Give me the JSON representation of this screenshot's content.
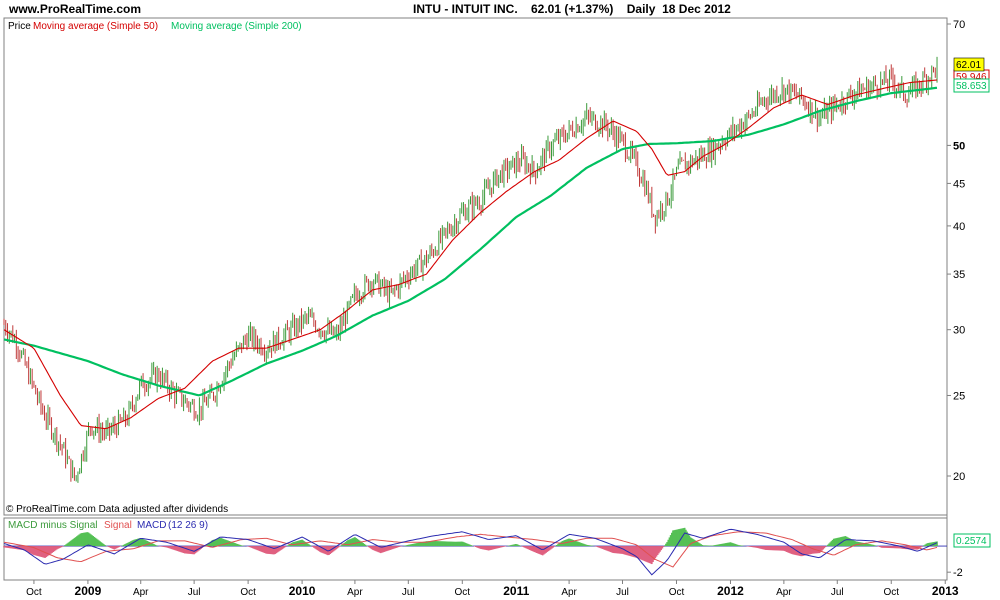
{
  "header": {
    "site": "www.ProRealTime.com",
    "symbol": "INTU - INTUIT INC.",
    "last_price": "62.01",
    "change": "(+1.37%)",
    "period": "Daily",
    "date": "18 Dec 2012"
  },
  "colors": {
    "price_up": "#3a9a3a",
    "price_down": "#c03a3a",
    "ma50": "#d40000",
    "ma200": "#00c060",
    "macd_line": "#2b2bb0",
    "signal_line": "#e05050",
    "hist_pos": "#55c055",
    "hist_neg": "#e06080",
    "price_badge": "#ffff00",
    "axis": "#808080"
  },
  "chart_data": [
    {
      "type": "line",
      "panel": "price",
      "legend": [
        "Price",
        "Moving average (Simple 50)",
        "Moving average (Simple 200)"
      ],
      "footnote": "© ProRealTime.com  Data adjusted after dividends",
      "y_scale": "log",
      "ylim": [
        18,
        70
      ],
      "y_ticks": [
        70,
        50,
        45,
        40,
        35,
        30,
        25,
        20
      ],
      "y_ticks_bold": [
        50
      ],
      "x_ticks": [
        {
          "label": "Oct",
          "date": "2008-10-01",
          "bold": false
        },
        {
          "label": "2009",
          "date": "2009-01-01",
          "bold": true
        },
        {
          "label": "Apr",
          "date": "2009-04-01",
          "bold": false
        },
        {
          "label": "Jul",
          "date": "2009-07-01",
          "bold": false
        },
        {
          "label": "Oct",
          "date": "2009-10-01",
          "bold": false
        },
        {
          "label": "2010",
          "date": "2010-01-01",
          "bold": true
        },
        {
          "label": "Apr",
          "date": "2010-04-01",
          "bold": false
        },
        {
          "label": "Jul",
          "date": "2010-07-01",
          "bold": false
        },
        {
          "label": "Oct",
          "date": "2010-10-01",
          "bold": false
        },
        {
          "label": "2011",
          "date": "2011-01-01",
          "bold": true
        },
        {
          "label": "Apr",
          "date": "2011-04-01",
          "bold": false
        },
        {
          "label": "Jul",
          "date": "2011-07-01",
          "bold": false
        },
        {
          "label": "Oct",
          "date": "2011-10-01",
          "bold": false
        },
        {
          "label": "2012",
          "date": "2012-01-01",
          "bold": true
        },
        {
          "label": "Apr",
          "date": "2012-04-01",
          "bold": false
        },
        {
          "label": "Jul",
          "date": "2012-07-01",
          "bold": false
        },
        {
          "label": "Oct",
          "date": "2012-10-01",
          "bold": false
        },
        {
          "label": "2013",
          "date": "2013-01-01",
          "bold": true
        }
      ],
      "value_labels": {
        "price": "62.01",
        "ma50": "59.946",
        "ma200": "58.653"
      },
      "price": {
        "dates": [
          "2008-08-11",
          "2008-09-01",
          "2008-10-15",
          "2008-11-20",
          "2008-12-10",
          "2009-01-05",
          "2009-02-01",
          "2009-03-09",
          "2009-04-01",
          "2009-05-01",
          "2009-06-01",
          "2009-07-08",
          "2009-08-01",
          "2009-09-01",
          "2009-10-01",
          "2009-11-01",
          "2009-12-01",
          "2010-01-10",
          "2010-02-05",
          "2010-03-01",
          "2010-04-01",
          "2010-05-01",
          "2010-06-01",
          "2010-07-01",
          "2010-08-01",
          "2010-09-01",
          "2010-10-01",
          "2010-11-01",
          "2010-12-01",
          "2011-01-10",
          "2011-02-01",
          "2011-03-01",
          "2011-04-01",
          "2011-05-01",
          "2011-06-01",
          "2011-07-01",
          "2011-07-20",
          "2011-08-05",
          "2011-08-25",
          "2011-09-15",
          "2011-10-05",
          "2011-11-01",
          "2011-12-01",
          "2012-01-05",
          "2012-02-01",
          "2012-03-01",
          "2012-04-01",
          "2012-05-01",
          "2012-06-01",
          "2012-07-01",
          "2012-08-01",
          "2012-09-01",
          "2012-10-01",
          "2012-10-25",
          "2012-11-15",
          "2012-12-18"
        ],
        "values": [
          30.5,
          29,
          24,
          21.5,
          19.8,
          23,
          22.5,
          23.5,
          25.8,
          26.5,
          25,
          24,
          25,
          27.5,
          29.5,
          28.5,
          29.5,
          31,
          30,
          29.5,
          33,
          34.5,
          33,
          35,
          36.5,
          39,
          41.5,
          43,
          46,
          48,
          46.5,
          50,
          52,
          54,
          53,
          50.5,
          48,
          45.5,
          41,
          43,
          47,
          48,
          49.5,
          52,
          54,
          57,
          58.5,
          57,
          54,
          56,
          58,
          59,
          60,
          57.5,
          59,
          62.01
        ]
      },
      "ma50": {
        "dates": [
          "2008-08-11",
          "2008-10-01",
          "2008-11-15",
          "2008-12-20",
          "2009-02-01",
          "2009-03-15",
          "2009-05-01",
          "2009-06-15",
          "2009-08-01",
          "2009-09-15",
          "2009-11-01",
          "2009-12-15",
          "2010-02-01",
          "2010-03-15",
          "2010-05-01",
          "2010-06-15",
          "2010-08-01",
          "2010-09-15",
          "2010-11-01",
          "2010-12-15",
          "2011-02-01",
          "2011-03-15",
          "2011-05-01",
          "2011-06-15",
          "2011-07-25",
          "2011-08-20",
          "2011-09-15",
          "2011-10-15",
          "2011-11-15",
          "2011-12-20",
          "2012-02-01",
          "2012-03-15",
          "2012-05-01",
          "2012-06-15",
          "2012-08-01",
          "2012-09-15",
          "2012-11-01",
          "2012-12-18"
        ],
        "values": [
          30,
          28.5,
          25,
          23,
          22.8,
          23.5,
          24.8,
          25.5,
          27.5,
          28.5,
          28.5,
          29.2,
          30,
          31.5,
          33.5,
          34,
          35,
          38.5,
          41.5,
          44,
          46.5,
          48,
          51,
          53.5,
          52,
          49.5,
          46,
          46.5,
          48.5,
          50,
          52.5,
          55.5,
          57.5,
          56,
          57.5,
          58.5,
          59.5,
          59.946
        ]
      },
      "ma200": {
        "dates": [
          "2008-08-11",
          "2008-10-01",
          "2009-01-01",
          "2009-03-01",
          "2009-05-01",
          "2009-07-10",
          "2009-09-01",
          "2009-11-01",
          "2010-01-01",
          "2010-03-01",
          "2010-05-01",
          "2010-07-01",
          "2010-09-01",
          "2010-11-01",
          "2011-01-01",
          "2011-03-01",
          "2011-05-01",
          "2011-07-01",
          "2011-08-15",
          "2011-10-01",
          "2011-12-01",
          "2012-02-01",
          "2012-04-01",
          "2012-06-01",
          "2012-08-01",
          "2012-10-01",
          "2012-12-18"
        ],
        "values": [
          29.2,
          28.7,
          27.5,
          26.5,
          25.7,
          25,
          26,
          27.3,
          28.3,
          29.5,
          31.2,
          32.5,
          34.5,
          37.5,
          41,
          43.5,
          47,
          49.5,
          50.2,
          50.3,
          50.6,
          51.5,
          53,
          55,
          56.5,
          57.8,
          58.653
        ]
      }
    },
    {
      "type": "line",
      "panel": "macd",
      "legend": [
        "MACD minus Signal",
        "Signal",
        "MACD",
        "(12 26 9)"
      ],
      "ylim": [
        -2.6,
        2.0
      ],
      "y_ticks": [
        -2
      ],
      "value_label": "0.2574",
      "macd": {
        "dates": [
          "2008-08-11",
          "2008-09-15",
          "2008-10-20",
          "2008-11-20",
          "2009-01-01",
          "2009-02-15",
          "2009-04-01",
          "2009-05-15",
          "2009-07-01",
          "2009-08-15",
          "2009-10-01",
          "2009-11-15",
          "2010-01-01",
          "2010-02-15",
          "2010-04-01",
          "2010-05-15",
          "2010-07-01",
          "2010-08-15",
          "2010-10-01",
          "2010-11-15",
          "2011-01-01",
          "2011-02-15",
          "2011-04-01",
          "2011-05-15",
          "2011-07-01",
          "2011-07-25",
          "2011-08-20",
          "2011-09-15",
          "2011-10-15",
          "2011-11-15",
          "2012-01-01",
          "2012-02-15",
          "2012-04-01",
          "2012-05-01",
          "2012-06-01",
          "2012-07-15",
          "2012-09-01",
          "2012-10-15",
          "2012-11-15",
          "2012-12-18"
        ],
        "values": [
          0.2,
          -0.3,
          -1.4,
          -1.0,
          0.1,
          -0.6,
          0.6,
          0.3,
          -0.4,
          0.7,
          0.5,
          -0.2,
          0.7,
          -0.4,
          0.9,
          -0.1,
          0.4,
          0.8,
          1.1,
          0.5,
          0.8,
          -0.3,
          0.9,
          0.6,
          -0.2,
          -0.8,
          -2.2,
          -1.1,
          1.0,
          0.6,
          1.3,
          0.9,
          0.3,
          -0.6,
          -0.9,
          0.5,
          0.4,
          0.0,
          -0.4,
          0.2574
        ]
      },
      "signal": {
        "dates": [
          "2008-08-11",
          "2008-09-30",
          "2008-11-10",
          "2008-12-20",
          "2009-02-01",
          "2009-03-20",
          "2009-05-01",
          "2009-06-15",
          "2009-08-01",
          "2009-09-20",
          "2009-11-01",
          "2009-12-15",
          "2010-02-01",
          "2010-03-20",
          "2010-05-01",
          "2010-06-15",
          "2010-08-01",
          "2010-09-20",
          "2010-11-01",
          "2010-12-15",
          "2011-02-01",
          "2011-03-20",
          "2011-05-01",
          "2011-06-15",
          "2011-07-25",
          "2011-08-25",
          "2011-09-25",
          "2011-10-25",
          "2011-12-01",
          "2012-01-15",
          "2012-03-01",
          "2012-04-15",
          "2012-05-20",
          "2012-06-25",
          "2012-08-01",
          "2012-09-15",
          "2012-10-25",
          "2012-12-01",
          "2012-12-18"
        ],
        "values": [
          0.3,
          -0.1,
          -0.9,
          -1.2,
          -0.4,
          -0.2,
          0.4,
          0.4,
          -0.1,
          0.5,
          0.6,
          0.1,
          0.4,
          0.1,
          0.5,
          0.3,
          0.3,
          0.7,
          0.9,
          0.7,
          0.5,
          0.2,
          0.6,
          0.6,
          0.1,
          -1.0,
          -1.6,
          0.2,
          0.8,
          1.1,
          1.0,
          0.5,
          -0.2,
          -0.7,
          0.1,
          0.4,
          0.1,
          -0.3,
          -0.1
        ]
      }
    }
  ]
}
